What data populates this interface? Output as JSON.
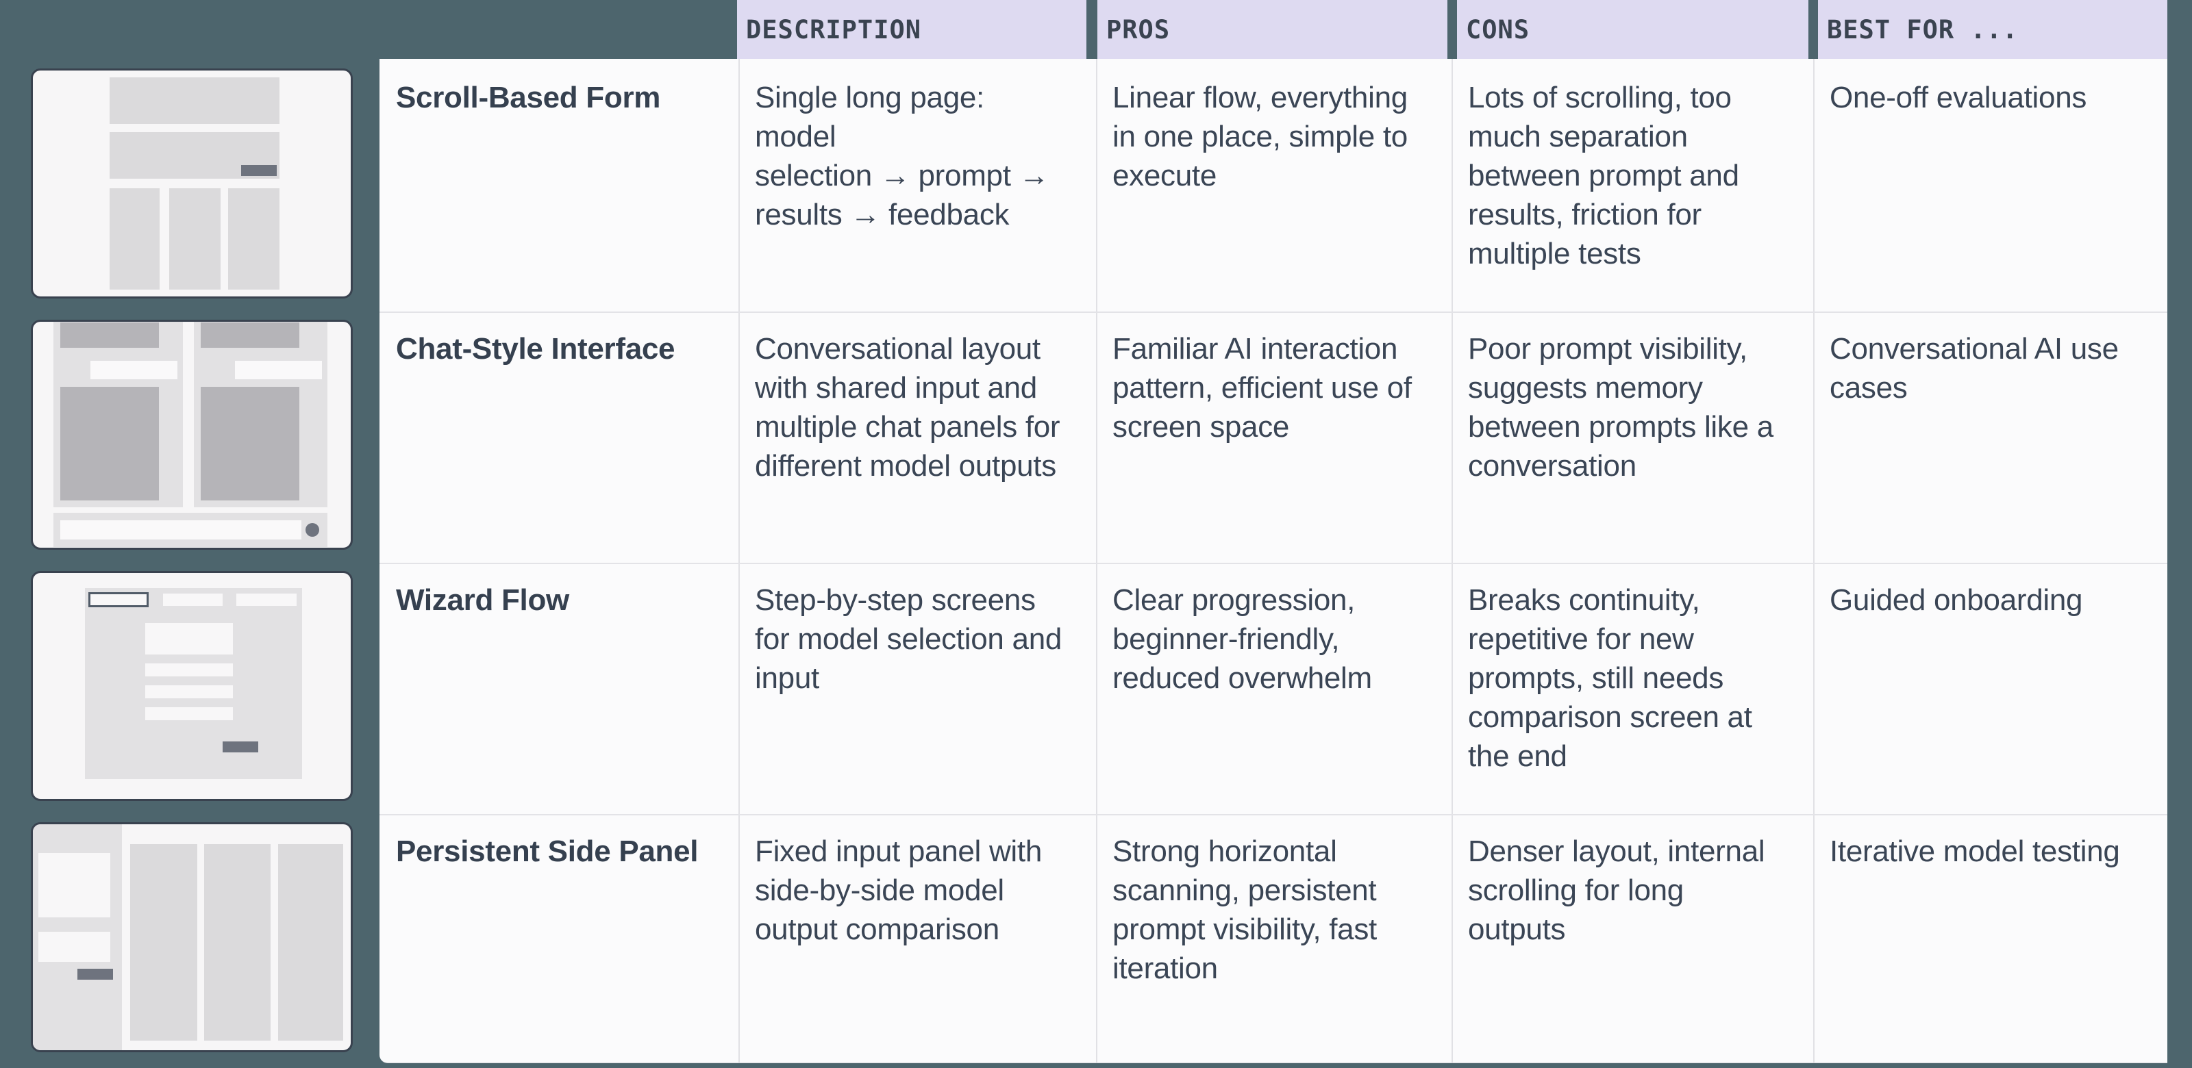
{
  "table": {
    "columns": [
      {
        "key": "description",
        "label": "DESCRIPTION"
      },
      {
        "key": "pros",
        "label": "PROS"
      },
      {
        "key": "cons",
        "label": "CONS"
      },
      {
        "key": "best_for",
        "label": "BEST FOR ..."
      }
    ],
    "rows": [
      {
        "name": "Scroll-Based Form",
        "thumbnail": "scroll-form-wireframe",
        "description": "Single long page: model\nselection → prompt →\nresults → feedback",
        "pros": "Linear flow, everything\nin one place, simple to\nexecute",
        "cons": "Lots of scrolling, too\nmuch separation\nbetween prompt and\nresults, friction for\nmultiple tests",
        "best_for": "One-off evaluations"
      },
      {
        "name": "Chat-Style Interface",
        "thumbnail": "chat-interface-wireframe",
        "description": "Conversational layout\nwith shared input and\nmultiple chat panels for\ndifferent model outputs",
        "pros": "Familiar AI interaction\npattern, efficient use of\nscreen space",
        "cons": "Poor prompt visibility,\nsuggests memory\nbetween prompts like a\nconversation",
        "best_for": "Conversational AI use\ncases"
      },
      {
        "name": "Wizard Flow",
        "thumbnail": "wizard-steps-wireframe",
        "description": "Step-by-step screens\nfor model selection and\ninput",
        "pros": "Clear progression,\nbeginner-friendly,\nreduced overwhelm",
        "cons": "Breaks continuity,\nrepetitive for new\nprompts, still needs\ncomparison screen at\nthe end",
        "best_for": "Guided onboarding"
      },
      {
        "name": "Persistent Side Panel",
        "thumbnail": "side-panel-wireframe",
        "description": "Fixed input panel with\nside-by-side model\noutput comparison",
        "pros": "Strong horizontal\nscanning, persistent\nprompt visibility, fast\niteration",
        "cons": "Denser layout, internal\nscrolling for long\noutputs",
        "best_for": "Iterative model testing"
      }
    ]
  },
  "colors": {
    "background": "#4D656D",
    "header_chip_bg": "#DEDAF1",
    "header_text": "#3A4350",
    "surface_bg": "#FBFBFC",
    "body_text": "#3A4555",
    "row_title_text": "#35404F",
    "divider": "#E1E1E5",
    "card_bg": "#F7F6F7",
    "card_border": "#39424F",
    "block_light_gray": "#DBDADC",
    "block_medium_gray": "#B5B4B8",
    "block_dark_slate": "#6E737E"
  }
}
